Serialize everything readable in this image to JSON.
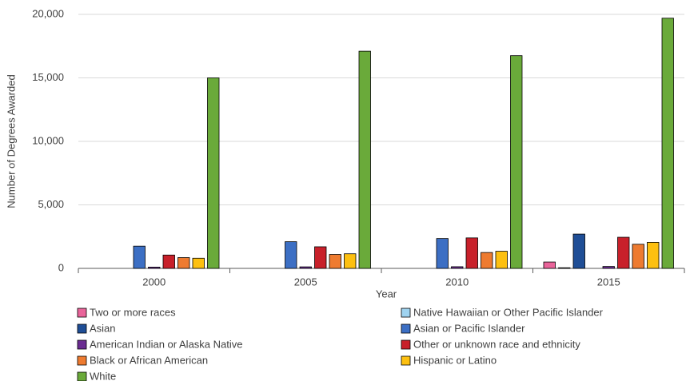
{
  "chart_data": {
    "type": "bar",
    "x_label": "Year",
    "y_label": "Number of Degrees Awarded",
    "categories": [
      "2000",
      "2005",
      "2010",
      "2015"
    ],
    "series": [
      {
        "name": "Two or more races",
        "color": "#e9649a",
        "values": [
          null,
          null,
          null,
          500
        ]
      },
      {
        "name": "Native Hawaiian or Other Pacific Islander",
        "color": "#9fd3f0",
        "values": [
          null,
          null,
          null,
          50
        ]
      },
      {
        "name": "Asian",
        "color": "#1f4e96",
        "values": [
          null,
          null,
          null,
          2700
        ]
      },
      {
        "name": "Asian or Pacific Islander",
        "color": "#3c6fc4",
        "values": [
          1750,
          2100,
          2350,
          null
        ]
      },
      {
        "name": "American Indian or Alaska Native",
        "color": "#6a2c91",
        "values": [
          100,
          120,
          130,
          150
        ]
      },
      {
        "name": "Other or unknown race and ethnicity",
        "color": "#c8202a",
        "values": [
          1050,
          1700,
          2400,
          2450
        ]
      },
      {
        "name": "Black or African American",
        "color": "#ee7b30",
        "values": [
          850,
          1100,
          1250,
          1900
        ]
      },
      {
        "name": "Hispanic or Latino",
        "color": "#fdc010",
        "values": [
          800,
          1150,
          1350,
          2050
        ]
      },
      {
        "name": "White",
        "color": "#6aaa3a",
        "values": [
          15000,
          17100,
          16750,
          19700
        ]
      }
    ],
    "ylim": [
      0,
      20000
    ],
    "yticks": [
      0,
      {
        "value": 5000,
        "label": "5,000"
      },
      {
        "value": 10000,
        "label": "10,000"
      },
      {
        "value": 15000,
        "label": "15,000"
      },
      {
        "value": 20000,
        "label": "20,000"
      }
    ],
    "grid": true
  }
}
